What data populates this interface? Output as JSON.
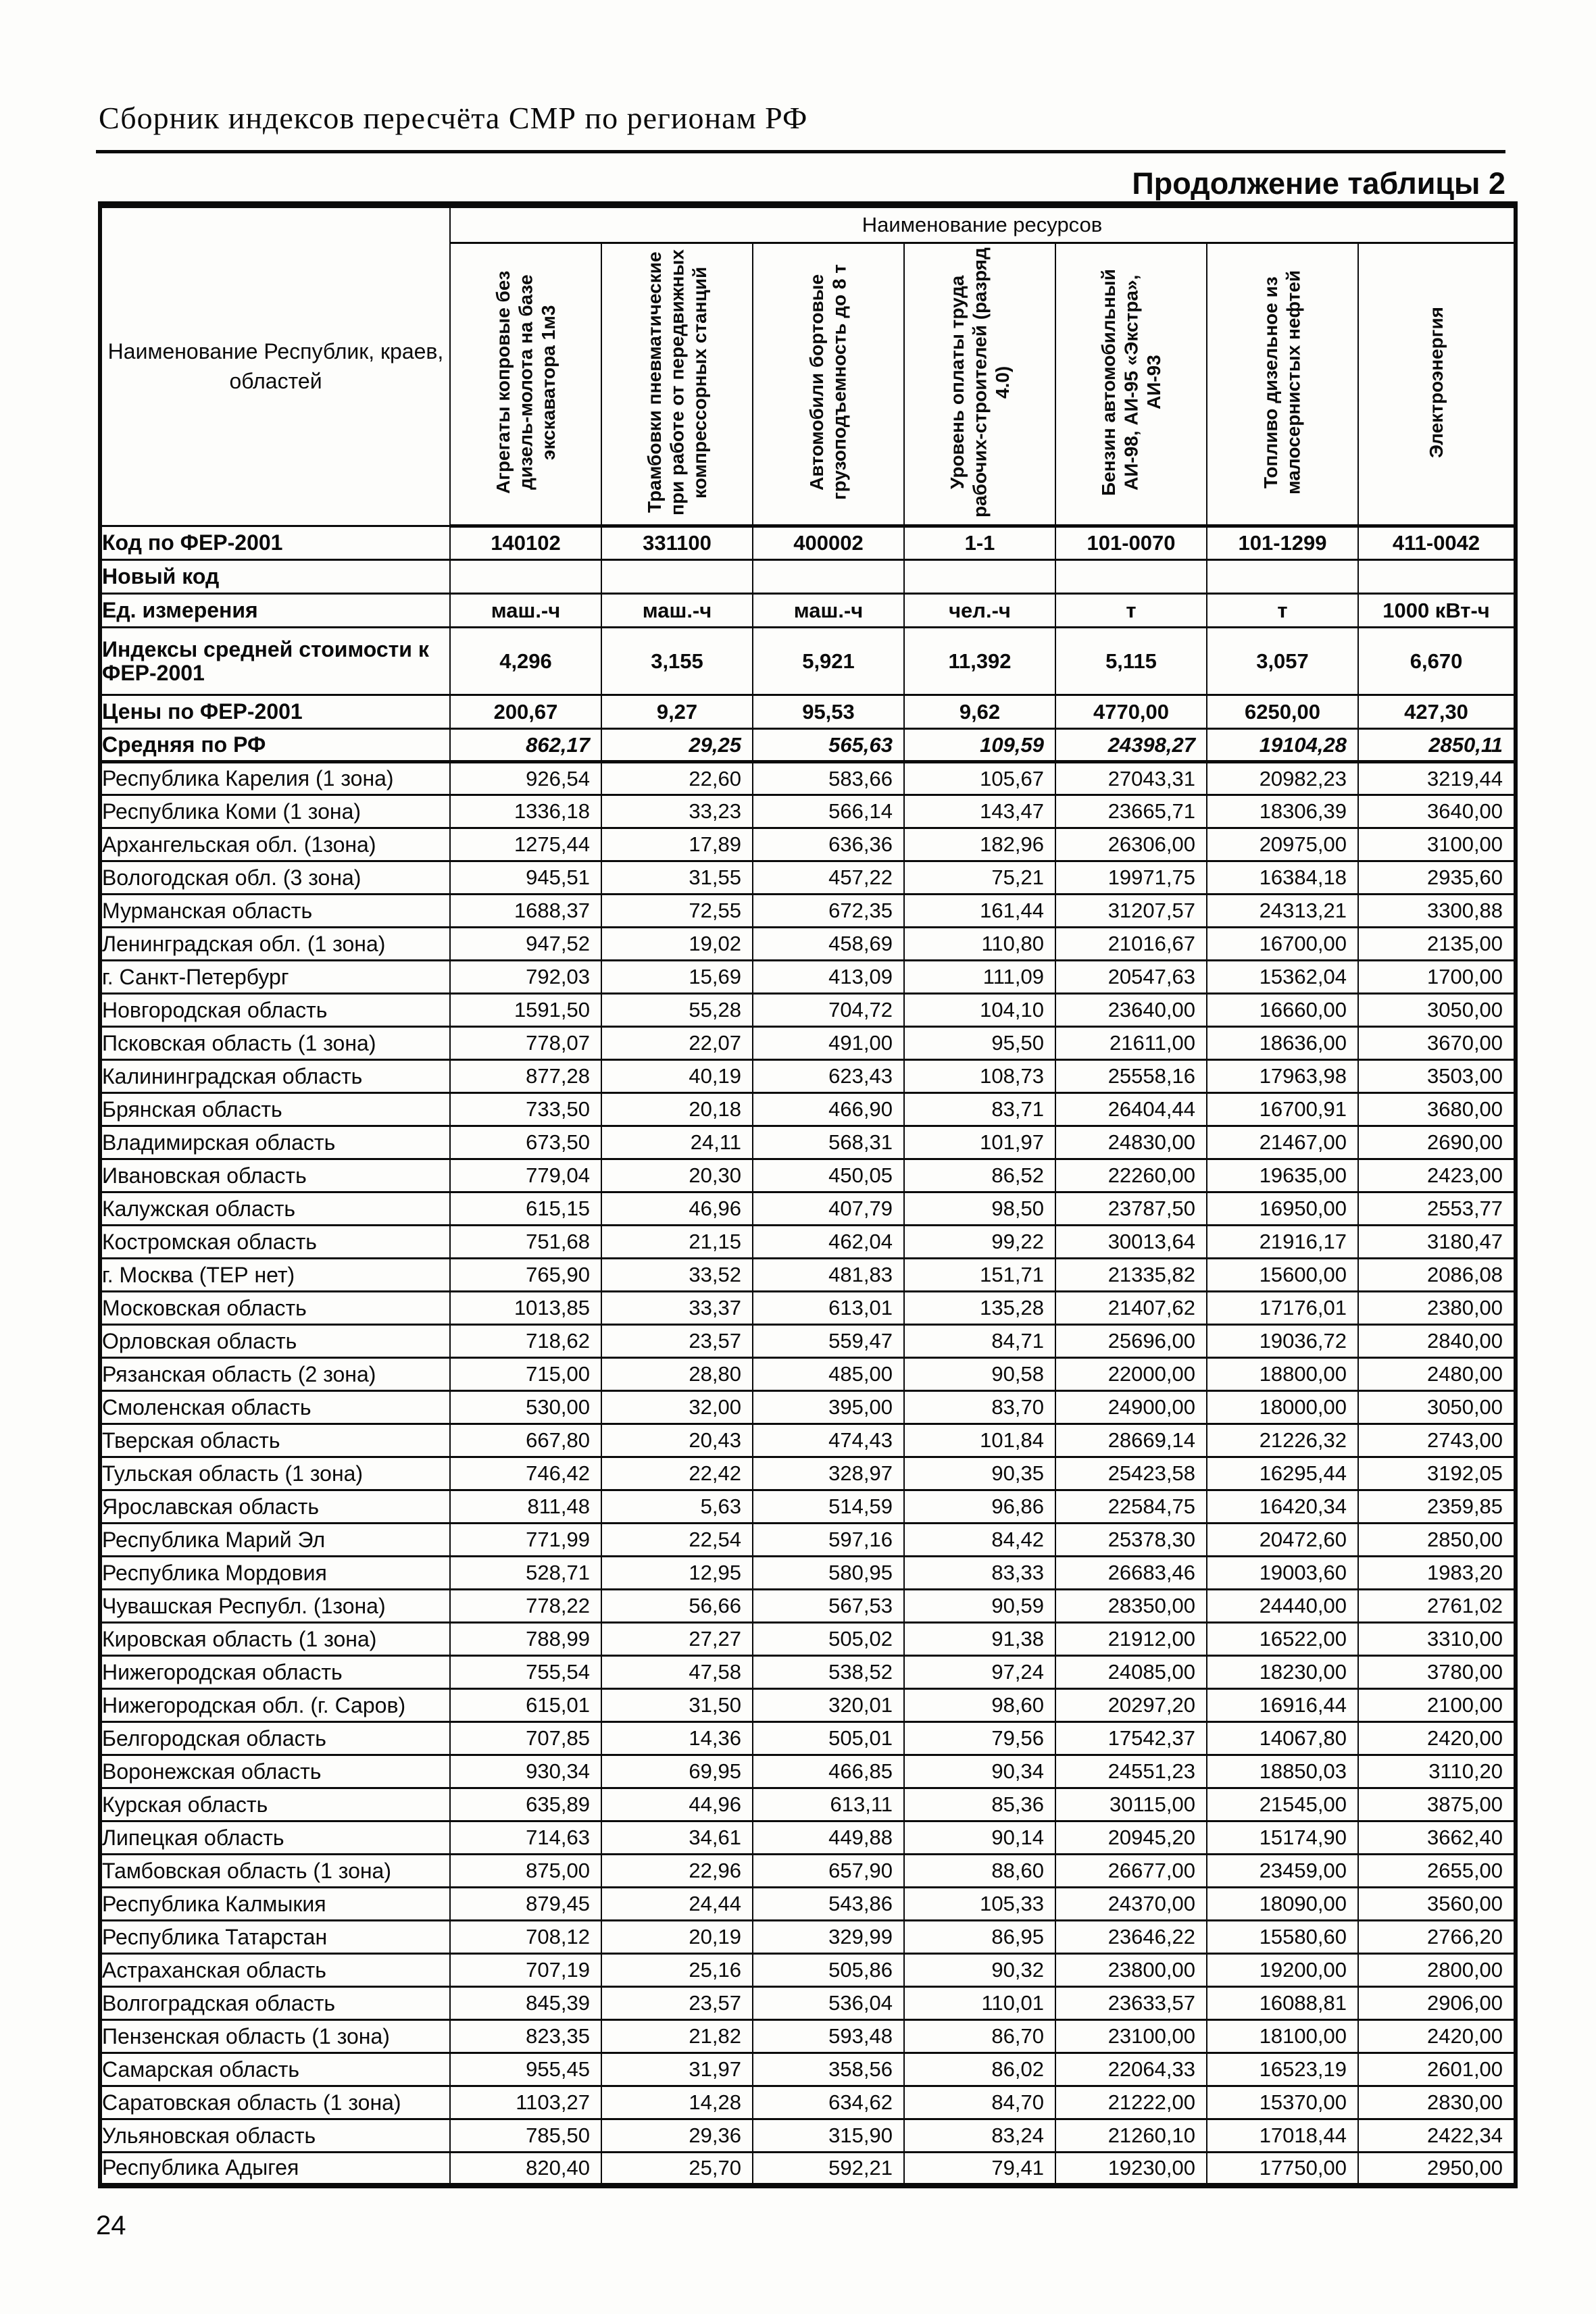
{
  "page": {
    "doc_header": "Сборник индексов пересчёта СМР  по регионам РФ",
    "table_caption": "Продолжение таблицы 2",
    "page_number": "24"
  },
  "table": {
    "resources_header": "Наименование ресурсов",
    "name_header": "Наименование Республик, краев, областей",
    "columns": [
      "Агрегаты копровые без дизель-молота на базе экскаватора 1м3",
      "Трамбовки пневматические при работе от передвижных компрессорных станций",
      "Автомобили бортовые грузоподъемность до 8 т",
      "Уровень оплаты труда рабочих-строителей (разряд 4.0)",
      "Бензин автомобильный АИ-98, АИ-95 «Экстра», АИ-93",
      "Топливо дизельное из малосернистых нефтей",
      "Электроэнергия"
    ],
    "rows": [
      {
        "key": "fer-code",
        "style": "code",
        "label": "Код по ФЕР-2001",
        "values": [
          "140102",
          "331100",
          "400002",
          "1-1",
          "101-0070",
          "101-1299",
          "411-0042"
        ]
      },
      {
        "key": "new-code",
        "style": "code",
        "label": "Новый код",
        "values": [
          "",
          "",
          "",
          "",
          "",
          "",
          ""
        ]
      },
      {
        "key": "units",
        "style": "units",
        "label": "Ед. измерения",
        "values": [
          "маш.-ч",
          "маш.-ч",
          "маш.-ч",
          "чел.-ч",
          "т",
          "т",
          "1000 кВт-ч"
        ]
      },
      {
        "key": "index",
        "style": "index",
        "label": "Индексы средней стоимости к ФЕР-2001",
        "values": [
          "4,296",
          "3,155",
          "5,921",
          "11,392",
          "5,115",
          "3,057",
          "6,670"
        ]
      },
      {
        "key": "prices",
        "style": "price",
        "label": "Цены по ФЕР-2001",
        "values": [
          "200,67",
          "9,27",
          "95,53",
          "9,62",
          "4770,00",
          "6250,00",
          "427,30"
        ]
      },
      {
        "key": "average",
        "style": "average",
        "label": "Средняя по РФ",
        "values": [
          "862,17",
          "29,25",
          "565,63",
          "109,59",
          "24398,27",
          "19104,28",
          "2850,11"
        ]
      },
      {
        "key": "region",
        "style": "region",
        "label": "Республика Карелия (1 зона)",
        "values": [
          "926,54",
          "22,60",
          "583,66",
          "105,67",
          "27043,31",
          "20982,23",
          "3219,44"
        ]
      },
      {
        "key": "region",
        "style": "region",
        "label": "Республика Коми (1 зона)",
        "values": [
          "1336,18",
          "33,23",
          "566,14",
          "143,47",
          "23665,71",
          "18306,39",
          "3640,00"
        ]
      },
      {
        "key": "region",
        "style": "region",
        "label": "Архангельская обл. (1зона)",
        "values": [
          "1275,44",
          "17,89",
          "636,36",
          "182,96",
          "26306,00",
          "20975,00",
          "3100,00"
        ]
      },
      {
        "key": "region",
        "style": "region",
        "label": "Вологодская обл. (3 зона)",
        "values": [
          "945,51",
          "31,55",
          "457,22",
          "75,21",
          "19971,75",
          "16384,18",
          "2935,60"
        ]
      },
      {
        "key": "region",
        "style": "region",
        "label": "Мурманская область",
        "values": [
          "1688,37",
          "72,55",
          "672,35",
          "161,44",
          "31207,57",
          "24313,21",
          "3300,88"
        ]
      },
      {
        "key": "region",
        "style": "region",
        "label": "Ленинградская обл. (1 зона)",
        "values": [
          "947,52",
          "19,02",
          "458,69",
          "110,80",
          "21016,67",
          "16700,00",
          "2135,00"
        ]
      },
      {
        "key": "region",
        "style": "region",
        "label": "г. Санкт-Петербург",
        "values": [
          "792,03",
          "15,69",
          "413,09",
          "111,09",
          "20547,63",
          "15362,04",
          "1700,00"
        ]
      },
      {
        "key": "region",
        "style": "region",
        "label": "Новгородская область",
        "values": [
          "1591,50",
          "55,28",
          "704,72",
          "104,10",
          "23640,00",
          "16660,00",
          "3050,00"
        ]
      },
      {
        "key": "region",
        "style": "region",
        "label": "Псковская область (1 зона)",
        "values": [
          "778,07",
          "22,07",
          "491,00",
          "95,50",
          "21611,00",
          "18636,00",
          "3670,00"
        ]
      },
      {
        "key": "region",
        "style": "region",
        "label": "Калининградская область",
        "values": [
          "877,28",
          "40,19",
          "623,43",
          "108,73",
          "25558,16",
          "17963,98",
          "3503,00"
        ]
      },
      {
        "key": "region",
        "style": "region",
        "label": "Брянская область",
        "values": [
          "733,50",
          "20,18",
          "466,90",
          "83,71",
          "26404,44",
          "16700,91",
          "3680,00"
        ]
      },
      {
        "key": "region",
        "style": "region",
        "label": "Владимирская область",
        "values": [
          "673,50",
          "24,11",
          "568,31",
          "101,97",
          "24830,00",
          "21467,00",
          "2690,00"
        ]
      },
      {
        "key": "region",
        "style": "region",
        "label": "Ивановская область",
        "values": [
          "779,04",
          "20,30",
          "450,05",
          "86,52",
          "22260,00",
          "19635,00",
          "2423,00"
        ]
      },
      {
        "key": "region",
        "style": "region",
        "label": "Калужская область",
        "values": [
          "615,15",
          "46,96",
          "407,79",
          "98,50",
          "23787,50",
          "16950,00",
          "2553,77"
        ]
      },
      {
        "key": "region",
        "style": "region",
        "label": "Костромская область",
        "values": [
          "751,68",
          "21,15",
          "462,04",
          "99,22",
          "30013,64",
          "21916,17",
          "3180,47"
        ]
      },
      {
        "key": "region",
        "style": "region",
        "label": "г. Москва (ТЕР нет)",
        "values": [
          "765,90",
          "33,52",
          "481,83",
          "151,71",
          "21335,82",
          "15600,00",
          "2086,08"
        ]
      },
      {
        "key": "region",
        "style": "region",
        "label": "Московская  область",
        "values": [
          "1013,85",
          "33,37",
          "613,01",
          "135,28",
          "21407,62",
          "17176,01",
          "2380,00"
        ]
      },
      {
        "key": "region",
        "style": "region",
        "label": "Орловская область",
        "values": [
          "718,62",
          "23,57",
          "559,47",
          "84,71",
          "25696,00",
          "19036,72",
          "2840,00"
        ]
      },
      {
        "key": "region",
        "style": "region",
        "label": "Рязанская область (2 зона)",
        "values": [
          "715,00",
          "28,80",
          "485,00",
          "90,58",
          "22000,00",
          "18800,00",
          "2480,00"
        ]
      },
      {
        "key": "region",
        "style": "region",
        "label": "Смоленская область",
        "values": [
          "530,00",
          "32,00",
          "395,00",
          "83,70",
          "24900,00",
          "18000,00",
          "3050,00"
        ]
      },
      {
        "key": "region",
        "style": "region",
        "label": "Тверская область",
        "values": [
          "667,80",
          "20,43",
          "474,43",
          "101,84",
          "28669,14",
          "21226,32",
          "2743,00"
        ]
      },
      {
        "key": "region",
        "style": "region",
        "label": "Тульская область (1 зона)",
        "values": [
          "746,42",
          "22,42",
          "328,97",
          "90,35",
          "25423,58",
          "16295,44",
          "3192,05"
        ]
      },
      {
        "key": "region",
        "style": "region",
        "label": "Ярославская область",
        "values": [
          "811,48",
          "5,63",
          "514,59",
          "96,86",
          "22584,75",
          "16420,34",
          "2359,85"
        ]
      },
      {
        "key": "region",
        "style": "region",
        "label": "Республика Марий Эл",
        "values": [
          "771,99",
          "22,54",
          "597,16",
          "84,42",
          "25378,30",
          "20472,60",
          "2850,00"
        ]
      },
      {
        "key": "region",
        "style": "region",
        "label": "Республика Мордовия",
        "values": [
          "528,71",
          "12,95",
          "580,95",
          "83,33",
          "26683,46",
          "19003,60",
          "1983,20"
        ]
      },
      {
        "key": "region",
        "style": "region",
        "label": "Чувашская Республ. (1зона)",
        "values": [
          "778,22",
          "56,66",
          "567,53",
          "90,59",
          "28350,00",
          "24440,00",
          "2761,02"
        ]
      },
      {
        "key": "region",
        "style": "region",
        "label": "Кировская область (1 зона)",
        "values": [
          "788,99",
          "27,27",
          "505,02",
          "91,38",
          "21912,00",
          "16522,00",
          "3310,00"
        ]
      },
      {
        "key": "region",
        "style": "region",
        "label": "Нижегородская область",
        "values": [
          "755,54",
          "47,58",
          "538,52",
          "97,24",
          "24085,00",
          "18230,00",
          "3780,00"
        ]
      },
      {
        "key": "region",
        "style": "region",
        "label": "Нижегородская обл. (г. Саров)",
        "values": [
          "615,01",
          "31,50",
          "320,01",
          "98,60",
          "20297,20",
          "16916,44",
          "2100,00"
        ]
      },
      {
        "key": "region",
        "style": "region",
        "label": "Белгородская область",
        "values": [
          "707,85",
          "14,36",
          "505,01",
          "79,56",
          "17542,37",
          "14067,80",
          "2420,00"
        ]
      },
      {
        "key": "region",
        "style": "region",
        "label": "Воронежская область",
        "values": [
          "930,34",
          "69,95",
          "466,85",
          "90,34",
          "24551,23",
          "18850,03",
          "3110,20"
        ]
      },
      {
        "key": "region",
        "style": "region",
        "label": "Курская область",
        "values": [
          "635,89",
          "44,96",
          "613,11",
          "85,36",
          "30115,00",
          "21545,00",
          "3875,00"
        ]
      },
      {
        "key": "region",
        "style": "region",
        "label": "Липецкая область",
        "values": [
          "714,63",
          "34,61",
          "449,88",
          "90,14",
          "20945,20",
          "15174,90",
          "3662,40"
        ]
      },
      {
        "key": "region",
        "style": "region",
        "label": "Тамбовская область (1 зона)",
        "values": [
          "875,00",
          "22,96",
          "657,90",
          "88,60",
          "26677,00",
          "23459,00",
          "2655,00"
        ]
      },
      {
        "key": "region",
        "style": "region",
        "label": "Республика Калмыкия",
        "values": [
          "879,45",
          "24,44",
          "543,86",
          "105,33",
          "24370,00",
          "18090,00",
          "3560,00"
        ]
      },
      {
        "key": "region",
        "style": "region",
        "label": "Республика Татарстан",
        "values": [
          "708,12",
          "20,19",
          "329,99",
          "86,95",
          "23646,22",
          "15580,60",
          "2766,20"
        ]
      },
      {
        "key": "region",
        "style": "region",
        "label": "Астраханская область",
        "values": [
          "707,19",
          "25,16",
          "505,86",
          "90,32",
          "23800,00",
          "19200,00",
          "2800,00"
        ]
      },
      {
        "key": "region",
        "style": "region",
        "label": "Волгоградская область",
        "values": [
          "845,39",
          "23,57",
          "536,04",
          "110,01",
          "23633,57",
          "16088,81",
          "2906,00"
        ]
      },
      {
        "key": "region",
        "style": "region",
        "label": "Пензенская область (1 зона)",
        "values": [
          "823,35",
          "21,82",
          "593,48",
          "86,70",
          "23100,00",
          "18100,00",
          "2420,00"
        ]
      },
      {
        "key": "region",
        "style": "region",
        "label": "Самарская область",
        "values": [
          "955,45",
          "31,97",
          "358,56",
          "86,02",
          "22064,33",
          "16523,19",
          "2601,00"
        ]
      },
      {
        "key": "region",
        "style": "region",
        "label": "Саратовская область (1 зона)",
        "values": [
          "1103,27",
          "14,28",
          "634,62",
          "84,70",
          "21222,00",
          "15370,00",
          "2830,00"
        ]
      },
      {
        "key": "region",
        "style": "region",
        "label": "Ульяновская область",
        "values": [
          "785,50",
          "29,36",
          "315,90",
          "83,24",
          "21260,10",
          "17018,44",
          "2422,34"
        ]
      },
      {
        "key": "region",
        "style": "region",
        "label": "Республика Адыгея",
        "values": [
          "820,40",
          "25,70",
          "592,21",
          "79,41",
          "19230,00",
          "17750,00",
          "2950,00"
        ]
      }
    ]
  }
}
